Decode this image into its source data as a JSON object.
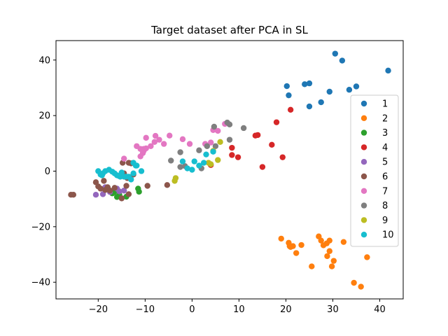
{
  "chart_data": {
    "type": "scatter",
    "title": "Target dataset after PCA in SL",
    "xlabel": "",
    "ylabel": "",
    "xlim": [
      -29,
      45
    ],
    "ylim": [
      -46,
      47
    ],
    "x_ticks": [
      -20,
      -10,
      0,
      10,
      20,
      30,
      40
    ],
    "y_ticks": [
      -40,
      -20,
      0,
      20,
      40
    ],
    "grid": false,
    "legend_position": "right",
    "series": [
      {
        "name": "1",
        "color": "#1f77b4",
        "points": [
          [
            30.5,
            42.3
          ],
          [
            32.0,
            39.8
          ],
          [
            41.8,
            36.2
          ],
          [
            20.2,
            30.6
          ],
          [
            24.0,
            31.3
          ],
          [
            25.0,
            31.6
          ],
          [
            35.0,
            30.5
          ],
          [
            33.5,
            29.3
          ],
          [
            29.3,
            28.6
          ],
          [
            20.6,
            27.3
          ],
          [
            27.5,
            24.8
          ],
          [
            25.0,
            23.3
          ]
        ]
      },
      {
        "name": "2",
        "color": "#ff7f0e",
        "points": [
          [
            19.0,
            -24.3
          ],
          [
            27.0,
            -23.5
          ],
          [
            27.5,
            -25.0
          ],
          [
            29.3,
            -25.0
          ],
          [
            32.3,
            -25.5
          ],
          [
            20.6,
            -25.8
          ],
          [
            28.0,
            -26.7
          ],
          [
            28.7,
            -26.0
          ],
          [
            23.3,
            -26.6
          ],
          [
            21.0,
            -27.3
          ],
          [
            20.8,
            -27.0
          ],
          [
            21.5,
            -27.0
          ],
          [
            29.3,
            -28.8
          ],
          [
            22.2,
            -29.5
          ],
          [
            28.8,
            -30.6
          ],
          [
            37.3,
            -31.0
          ],
          [
            30.2,
            -32.3
          ],
          [
            25.5,
            -34.3
          ],
          [
            29.8,
            -34.3
          ],
          [
            34.5,
            -40.2
          ],
          [
            36.0,
            -41.6
          ]
        ]
      },
      {
        "name": "3",
        "color": "#2ca02c",
        "points": [
          [
            -11.5,
            -6.3
          ],
          [
            -11.3,
            -7.4
          ],
          [
            -14.0,
            -9.2
          ],
          [
            -16.6,
            -7.5
          ],
          [
            -17.0,
            -8.0
          ],
          [
            -15.5,
            -8.5
          ],
          [
            -16.0,
            -9.3
          ]
        ]
      },
      {
        "name": "4",
        "color": "#d62728",
        "points": [
          [
            21.0,
            22.1
          ],
          [
            18.0,
            17.6
          ],
          [
            14.0,
            13.0
          ],
          [
            13.5,
            12.8
          ],
          [
            17.0,
            9.5
          ],
          [
            8.5,
            8.4
          ],
          [
            8.5,
            5.8
          ],
          [
            9.8,
            5.0
          ],
          [
            19.3,
            5.0
          ],
          [
            4.0,
            2.2
          ],
          [
            15.0,
            1.5
          ]
        ]
      },
      {
        "name": "5",
        "color": "#9467bd",
        "points": [
          [
            -20.5,
            -8.5
          ],
          [
            -19.0,
            -8.3
          ],
          [
            -17.5,
            -7.5
          ],
          [
            -15.5,
            -7.3
          ],
          [
            -16.0,
            -6.3
          ],
          [
            -18.5,
            -5.8
          ],
          [
            -14.5,
            -7.0
          ]
        ]
      },
      {
        "name": "6",
        "color": "#8c564b",
        "points": [
          [
            -25.8,
            -8.5
          ],
          [
            -25.3,
            -8.5
          ],
          [
            -20.5,
            -4.0
          ],
          [
            -20.0,
            -5.5
          ],
          [
            -19.5,
            -6.3
          ],
          [
            -18.5,
            -6.8
          ],
          [
            -18.0,
            -5.8
          ],
          [
            -18.8,
            -3.5
          ],
          [
            -16.5,
            -6.0
          ],
          [
            -17.5,
            -7.0
          ],
          [
            -15.0,
            -9.8
          ],
          [
            -14.0,
            -5.3
          ],
          [
            -13.5,
            -8.3
          ],
          [
            -12.5,
            -1.2
          ],
          [
            -14.5,
            -0.8
          ],
          [
            -13.8,
            -2.5
          ],
          [
            -14.8,
            3.0
          ],
          [
            -13.5,
            3.0
          ],
          [
            -13.0,
            2.8
          ],
          [
            -9.5,
            -5.3
          ],
          [
            -5.3,
            -5.0
          ]
        ]
      },
      {
        "name": "7",
        "color": "#e377c2",
        "points": [
          [
            -7.8,
            12.7
          ],
          [
            -7.0,
            11.3
          ],
          [
            -9.8,
            12.0
          ],
          [
            -4.8,
            12.8
          ],
          [
            -2.0,
            11.5
          ],
          [
            -8.8,
            9.0
          ],
          [
            -8.0,
            10.5
          ],
          [
            -6.0,
            9.8
          ],
          [
            -0.5,
            9.8
          ],
          [
            -11.8,
            9.0
          ],
          [
            -11.0,
            8.0
          ],
          [
            -10.3,
            8.0
          ],
          [
            -9.8,
            8.2
          ],
          [
            -10.5,
            6.5
          ],
          [
            -11.0,
            5.3
          ],
          [
            -14.5,
            4.5
          ],
          [
            -10.3,
            7.3
          ],
          [
            2.8,
            9.8
          ],
          [
            4.0,
            10.3
          ],
          [
            5.5,
            14.5
          ],
          [
            7.0,
            17.0
          ],
          [
            4.5,
            14.8
          ]
        ]
      },
      {
        "name": "8",
        "color": "#7f7f7f",
        "points": [
          [
            7.5,
            17.5
          ],
          [
            8.0,
            16.8
          ],
          [
            4.7,
            16.0
          ],
          [
            11.0,
            15.5
          ],
          [
            3.2,
            9.0
          ],
          [
            5.0,
            9.0
          ],
          [
            8.0,
            11.3
          ],
          [
            -2.5,
            6.8
          ],
          [
            1.5,
            7.5
          ],
          [
            -4.5,
            3.8
          ],
          [
            -2.5,
            1.5
          ],
          [
            -1.5,
            1.8
          ],
          [
            2.0,
            1.0
          ]
        ]
      },
      {
        "name": "9",
        "color": "#bcbd22",
        "points": [
          [
            6.0,
            10.5
          ],
          [
            4.5,
            7.3
          ],
          [
            5.5,
            4.0
          ],
          [
            3.5,
            3.0
          ],
          [
            4.0,
            2.5
          ],
          [
            -3.5,
            -2.5
          ],
          [
            -3.7,
            -3.5
          ]
        ]
      },
      {
        "name": "10",
        "color": "#17becf",
        "points": [
          [
            -20.0,
            0.0
          ],
          [
            -19.5,
            -1.2
          ],
          [
            -19.2,
            -1.5
          ],
          [
            -19.0,
            -0.8
          ],
          [
            -18.5,
            0.0
          ],
          [
            -17.7,
            0.5
          ],
          [
            -17.0,
            -0.2
          ],
          [
            -16.5,
            -0.8
          ],
          [
            -16.0,
            -1.5
          ],
          [
            -15.5,
            -1.8
          ],
          [
            -15.0,
            -0.5
          ],
          [
            -15.3,
            -2.0
          ],
          [
            -14.5,
            -2.0
          ],
          [
            -14.0,
            -2.0
          ],
          [
            -13.5,
            -2.0
          ],
          [
            -13.0,
            -3.0
          ],
          [
            -12.5,
            -0.8
          ],
          [
            -12.0,
            2.0
          ],
          [
            -12.5,
            3.0
          ],
          [
            -11.8,
            2.0
          ],
          [
            -10.8,
            0.0
          ],
          [
            -2.0,
            3.5
          ],
          [
            0.5,
            3.5
          ],
          [
            -1.0,
            1.0
          ],
          [
            1.5,
            2.0
          ],
          [
            3.0,
            6.0
          ],
          [
            4.5,
            7.0
          ],
          [
            2.5,
            3.0
          ],
          [
            0.0,
            0.5
          ]
        ]
      }
    ]
  }
}
